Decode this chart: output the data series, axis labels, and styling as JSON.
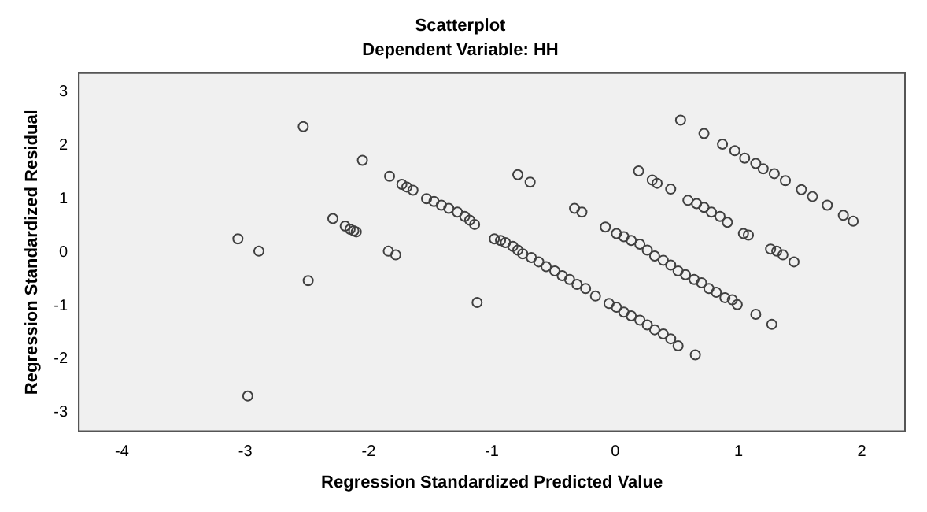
{
  "chart_data": {
    "type": "scatter",
    "title": "Scatterplot",
    "subtitle": "Dependent Variable: HH",
    "xlabel": "Regression Standardized Predicted Value",
    "ylabel": "Regression Standardized Residual",
    "xlim": [
      -4.35,
      2.35
    ],
    "ylim": [
      -3.35,
      3.35
    ],
    "xticks": [
      -4,
      -3,
      -2,
      -1,
      0,
      1,
      2
    ],
    "yticks": [
      -3,
      -2,
      -1,
      0,
      1,
      2,
      3
    ],
    "grid": false,
    "legend": false,
    "marker": "circle",
    "series": [
      {
        "color": "#404040",
        "x": [
          -2.53,
          -2.05,
          -3.06,
          -2.89,
          -2.49,
          -2.98,
          -2.29,
          -2.19,
          -2.15,
          -2.12,
          -2.1,
          -1.83,
          -1.84,
          -1.78,
          -1.73,
          -1.69,
          -1.64,
          -1.53,
          -1.47,
          -1.41,
          -1.35,
          -1.28,
          -1.22,
          -1.18,
          -1.14,
          -1.12,
          -0.79,
          -0.69,
          -0.33,
          -0.27,
          -0.98,
          -0.93,
          -0.89,
          -0.83,
          -0.79,
          -0.75,
          -0.68,
          -0.62,
          -0.56,
          -0.49,
          -0.43,
          -0.37,
          -0.31,
          -0.24,
          -0.16,
          -0.05,
          0.01,
          0.07,
          0.13,
          0.2,
          0.26,
          0.32,
          0.39,
          0.45,
          0.51,
          0.65,
          -0.08,
          0.01,
          0.07,
          0.13,
          0.2,
          0.26,
          0.32,
          0.39,
          0.45,
          0.51,
          0.57,
          0.64,
          0.7,
          0.76,
          0.82,
          0.89,
          0.95,
          0.99,
          1.14,
          1.27,
          0.19,
          0.3,
          0.34,
          0.45,
          0.59,
          0.66,
          0.72,
          0.78,
          0.85,
          0.91,
          1.04,
          1.08,
          1.26,
          1.31,
          1.36,
          1.45,
          0.53,
          0.72,
          0.87,
          0.97,
          1.05,
          1.14,
          1.2,
          1.29,
          1.38,
          1.51,
          1.6,
          1.72,
          1.85,
          1.93
        ],
        "values": [
          2.35,
          1.72,
          0.25,
          0.02,
          -0.53,
          -2.69,
          0.63,
          0.49,
          0.43,
          0.4,
          0.38,
          1.42,
          0.02,
          -0.05,
          1.27,
          1.22,
          1.16,
          1.0,
          0.95,
          0.88,
          0.82,
          0.75,
          0.67,
          0.6,
          0.52,
          -0.94,
          1.45,
          1.31,
          0.82,
          0.75,
          0.25,
          0.22,
          0.18,
          0.11,
          0.04,
          -0.03,
          -0.1,
          -0.18,
          -0.27,
          -0.35,
          -0.44,
          -0.51,
          -0.6,
          -0.68,
          -0.82,
          -0.96,
          -1.03,
          -1.12,
          -1.19,
          -1.27,
          -1.36,
          -1.45,
          -1.53,
          -1.62,
          -1.75,
          -1.92,
          0.47,
          0.35,
          0.29,
          0.22,
          0.15,
          0.04,
          -0.07,
          -0.15,
          -0.24,
          -0.35,
          -0.42,
          -0.51,
          -0.57,
          -0.68,
          -0.75,
          -0.85,
          -0.89,
          -0.98,
          -1.16,
          -1.35,
          1.52,
          1.35,
          1.29,
          1.18,
          0.97,
          0.91,
          0.84,
          0.75,
          0.67,
          0.56,
          0.35,
          0.32,
          0.06,
          0.02,
          -0.05,
          -0.18,
          2.47,
          2.22,
          2.02,
          1.9,
          1.76,
          1.66,
          1.56,
          1.47,
          1.34,
          1.17,
          1.04,
          0.88,
          0.69,
          0.58
        ]
      }
    ]
  }
}
